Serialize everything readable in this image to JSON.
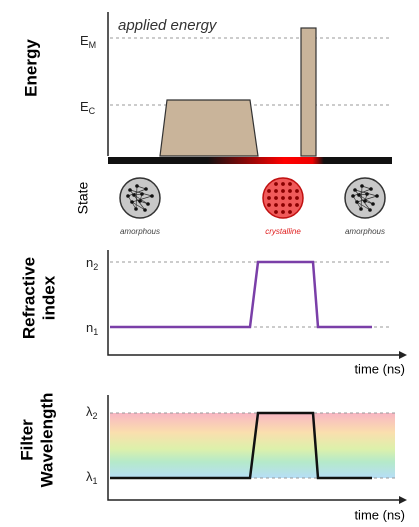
{
  "energy_panel": {
    "y_label": "Energy",
    "annotation": "applied energy",
    "levels": [
      {
        "symbol": "E",
        "subscript": "M"
      },
      {
        "symbol": "E",
        "subscript": "C"
      }
    ],
    "state_label": "State",
    "states": [
      "amorphous",
      "crystalline",
      "amorphous"
    ]
  },
  "index_panel": {
    "y_label": [
      "Refractive",
      "index"
    ],
    "levels": [
      {
        "symbol": "n",
        "subscript": "2"
      },
      {
        "symbol": "n",
        "subscript": "1"
      }
    ],
    "x_label": "time (ns)"
  },
  "wavelength_panel": {
    "y_label": [
      "Filter",
      "Wavelength"
    ],
    "levels": [
      {
        "symbol": "λ",
        "subscript": "2"
      },
      {
        "symbol": "λ",
        "subscript": "1"
      }
    ],
    "x_label": "time (ns)"
  }
}
